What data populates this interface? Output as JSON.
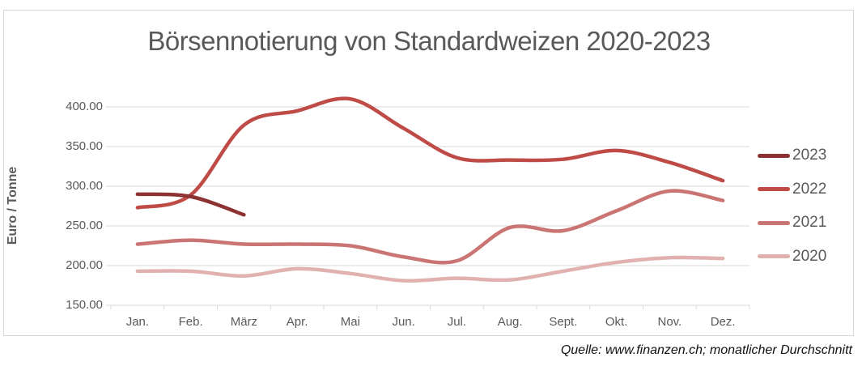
{
  "title": "Börsennotierung von Standardweizen 2020-2023",
  "caption": "Quelle: www.finanzen.ch; monatlicher Durchschnitt",
  "colors": {
    "title_text": "#595959",
    "axis_text": "#595959",
    "gridline": "#d9d9d9",
    "frame_border": "#d6d6d6",
    "background": "#ffffff"
  },
  "chart_data": {
    "type": "line",
    "title": "Börsennotierung von Standardweizen 2020-2023",
    "xlabel": "",
    "ylabel": "Euro / Tonne",
    "ylim": [
      150,
      400
    ],
    "ytick_step": 50,
    "ytick_labels": [
      "150.00",
      "200.00",
      "250.00",
      "300.00",
      "350.00",
      "400.00"
    ],
    "categories": [
      "Jan.",
      "Feb.",
      "März",
      "Apr.",
      "Mai",
      "Jun.",
      "Jul.",
      "Aug.",
      "Sept.",
      "Okt.",
      "Nov.",
      "Dez."
    ],
    "grid": "horizontal",
    "line_style": "smooth",
    "legend_position": "right",
    "legend_order_top_to_bottom": [
      "2023",
      "2022",
      "2021",
      "2020"
    ],
    "unit": "Euro / Tonne",
    "series": [
      {
        "name": "2023",
        "color": "#8c3233",
        "values": [
          290,
          287,
          264,
          null,
          null,
          null,
          null,
          null,
          null,
          null,
          null,
          null
        ]
      },
      {
        "name": "2022",
        "color": "#bf4b47",
        "values": [
          273,
          289,
          377,
          395,
          410,
          373,
          336,
          333,
          334,
          345,
          330,
          307
        ]
      },
      {
        "name": "2021",
        "color": "#ca7573",
        "values": [
          227,
          232,
          227,
          227,
          225,
          211,
          206,
          248,
          244,
          269,
          294,
          282
        ]
      },
      {
        "name": "2020",
        "color": "#e0b1af",
        "values": [
          193,
          193,
          187,
          196,
          190,
          181,
          184,
          182,
          193,
          204,
          210,
          209
        ]
      }
    ]
  }
}
